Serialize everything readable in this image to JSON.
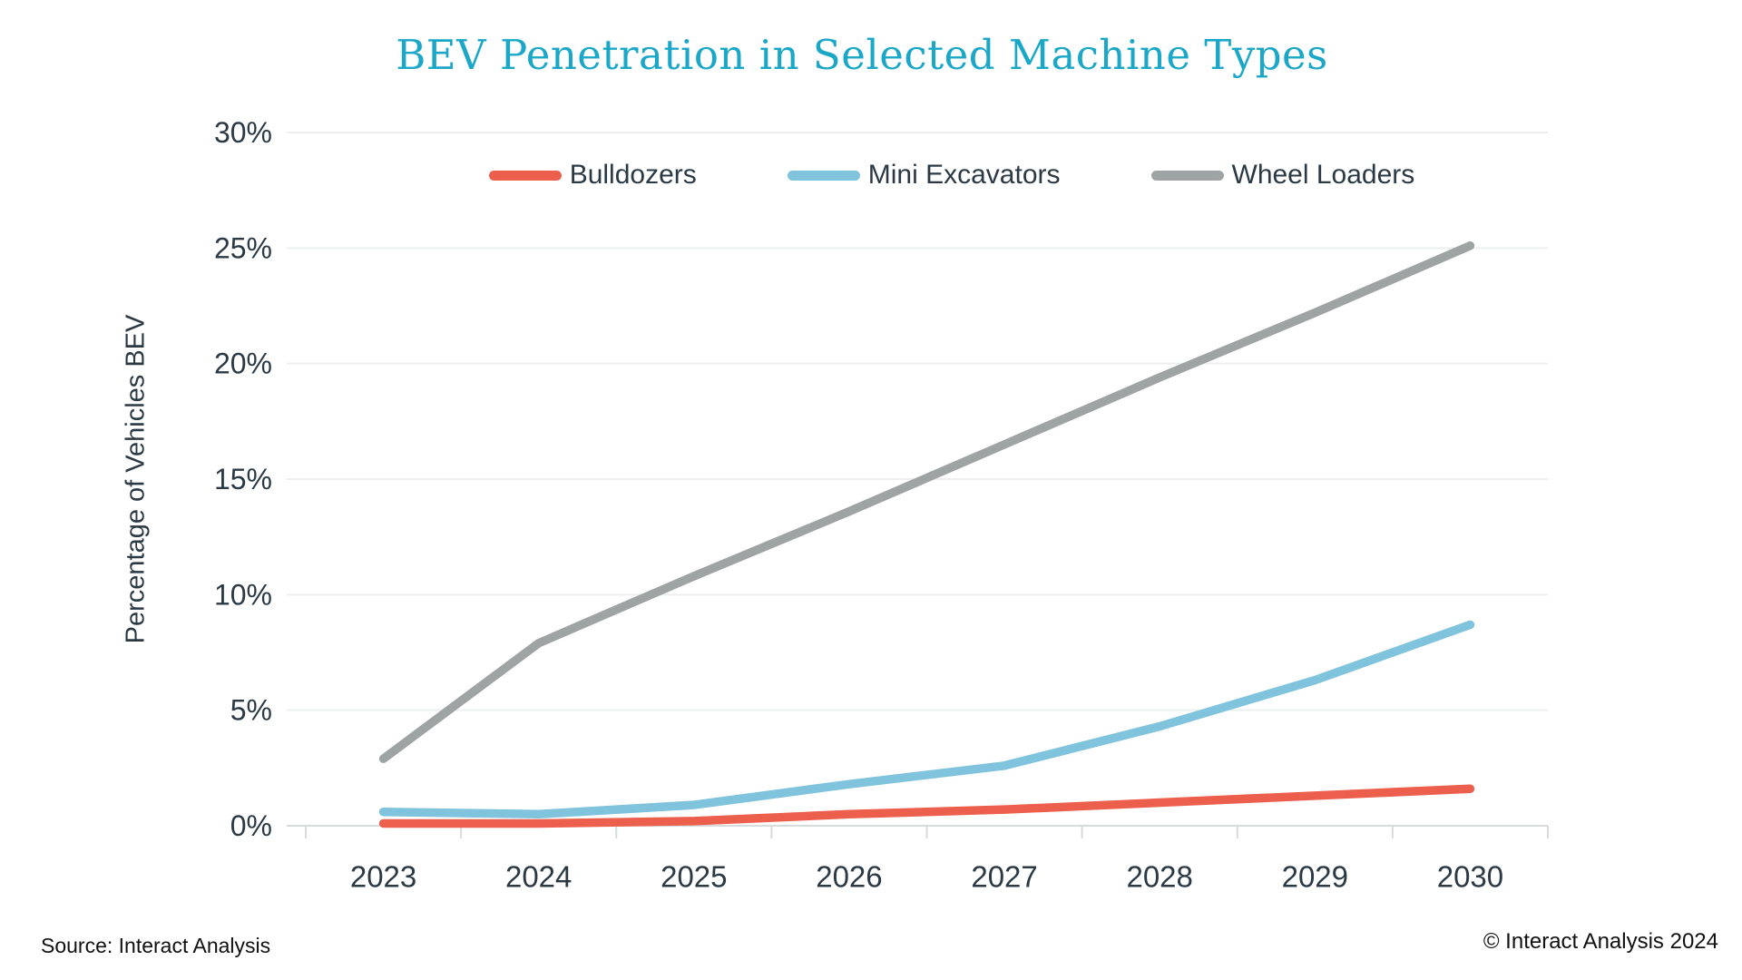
{
  "chart_data": {
    "type": "line",
    "title": "BEV Penetration in Selected Machine Types",
    "xlabel": "",
    "ylabel": "Percentage of Vehicles BEV",
    "categories": [
      "2023",
      "2024",
      "2025",
      "2026",
      "2027",
      "2028",
      "2029",
      "2030"
    ],
    "series": [
      {
        "name": "Bulldozers",
        "color": "#EC5F4C",
        "values": [
          0.1,
          0.1,
          0.2,
          0.5,
          0.7,
          1.0,
          1.3,
          1.6
        ]
      },
      {
        "name": "Mini Excavators",
        "color": "#7FC3DC",
        "values": [
          0.6,
          0.5,
          0.9,
          1.8,
          2.6,
          4.3,
          6.3,
          8.7
        ]
      },
      {
        "name": "Wheel Loaders",
        "color": "#9EA3A3",
        "values": [
          2.9,
          7.9,
          10.8,
          13.6,
          16.5,
          19.4,
          22.2,
          25.1
        ]
      }
    ],
    "ylim": [
      0,
      30
    ],
    "ytick_step": 5,
    "ytick_labels": [
      "0%",
      "5%",
      "10%",
      "15%",
      "20%",
      "25%",
      "30%"
    ],
    "grid": "horizontal",
    "legend_position": "top"
  },
  "footer": {
    "source": "Source: Interact Analysis",
    "copyright": "© Interact Analysis 2024"
  },
  "colors": {
    "title_accent": "#1BA7C7",
    "axis_text": "#2B3944",
    "gridline": "#EDEFEF",
    "axis_line": "#D7DBDB",
    "background": "#FFFFFF"
  }
}
